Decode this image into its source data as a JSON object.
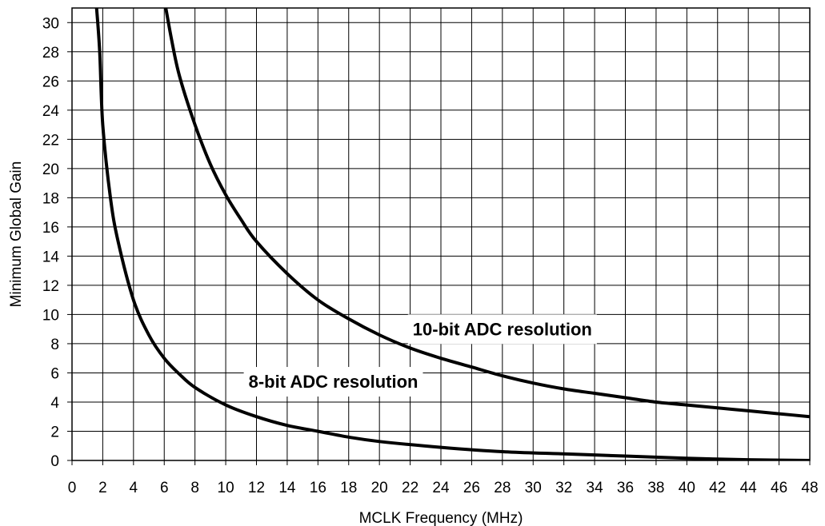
{
  "chart_data": {
    "type": "line",
    "title": "",
    "xlabel": "MCLK Frequency (MHz)",
    "ylabel": "Minimum Global Gain",
    "xlim": [
      0,
      48
    ],
    "ylim": [
      0,
      31
    ],
    "xticks": [
      0,
      2,
      4,
      6,
      8,
      10,
      12,
      14,
      16,
      18,
      20,
      22,
      24,
      26,
      28,
      30,
      32,
      34,
      36,
      38,
      40,
      42,
      44,
      46,
      48
    ],
    "yticks": [
      0,
      2,
      4,
      6,
      8,
      10,
      12,
      14,
      16,
      18,
      20,
      22,
      24,
      26,
      28,
      30
    ],
    "grid": true,
    "legend": "none",
    "series": [
      {
        "name": "8-bit ADC resolution",
        "x": [
          1.6,
          1.8,
          2,
          2.5,
          3,
          4,
          5,
          6,
          7,
          8,
          10,
          12,
          14,
          16,
          18,
          20,
          24,
          28,
          32,
          36,
          40,
          44,
          48
        ],
        "y": [
          31,
          28,
          23,
          18,
          15,
          11,
          8.6,
          7,
          5.9,
          5,
          3.8,
          3,
          2.4,
          2,
          1.6,
          1.3,
          0.9,
          0.6,
          0.45,
          0.3,
          0.15,
          0.05,
          0
        ]
      },
      {
        "name": "10-bit ADC resolution",
        "x": [
          6.1,
          6.5,
          7,
          8,
          9,
          10,
          11,
          12,
          14,
          16,
          18,
          20,
          22,
          24,
          26,
          28,
          30,
          32,
          34,
          36,
          38,
          40,
          42,
          44,
          46,
          48
        ],
        "y": [
          31,
          28.7,
          26.3,
          23,
          20.3,
          18.2,
          16.5,
          15,
          12.8,
          11,
          9.7,
          8.6,
          7.7,
          7,
          6.4,
          5.8,
          5.3,
          4.9,
          4.6,
          4.3,
          4,
          3.8,
          3.6,
          3.4,
          3.2,
          3
        ]
      }
    ],
    "annotations": [
      {
        "text": "8-bit ADC resolution",
        "x": 17,
        "y": 5.3
      },
      {
        "text": "10-bit ADC resolution",
        "x": 28,
        "y": 8.9
      }
    ]
  }
}
